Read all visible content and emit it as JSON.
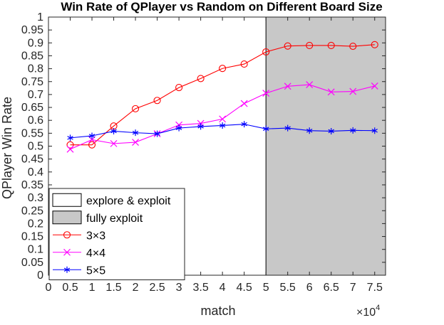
{
  "chart_data": {
    "type": "line",
    "title": "Win Rate of QPlayer vs Random on Different Board Size",
    "xlabel": "match",
    "ylabel": "QPlayer Win Rate",
    "x_multiplier_label": "×10",
    "x_multiplier_exponent": "4",
    "xlim": [
      0,
      7.75
    ],
    "ylim": [
      0,
      1
    ],
    "xticks": [
      0,
      0.5,
      1,
      1.5,
      2,
      2.5,
      3,
      3.5,
      4,
      4.5,
      5,
      5.5,
      6,
      6.5,
      7,
      7.5
    ],
    "xtick_labels": [
      "0",
      "0.5",
      "1",
      "1.5",
      "2",
      "2.5",
      "3",
      "3.5",
      "4",
      "4.5",
      "5",
      "5.5",
      "6",
      "6.5",
      "7",
      "7.5"
    ],
    "yticks": [
      0,
      0.05,
      0.1,
      0.15,
      0.2,
      0.25,
      0.3,
      0.35,
      0.4,
      0.45,
      0.5,
      0.55,
      0.6,
      0.65,
      0.7,
      0.75,
      0.8,
      0.85,
      0.9,
      0.95,
      1
    ],
    "ytick_labels": [
      "0",
      "0.05",
      "0.1",
      "0.15",
      "0.2",
      "0.25",
      "0.3",
      "0.35",
      "0.4",
      "0.45",
      "0.5",
      "0.55",
      "0.6",
      "0.65",
      "0.7",
      "0.75",
      "0.8",
      "0.85",
      "0.9",
      "0.95",
      "1"
    ],
    "grid": false,
    "legend_position": "bottom-left",
    "regions": [
      {
        "name": "explore & exploit",
        "x_range": [
          0,
          5
        ],
        "color": "#ffffff"
      },
      {
        "name": "fully exploit",
        "x_range": [
          5,
          7.75
        ],
        "color": "#c8c8c8"
      }
    ],
    "x": [
      0.5,
      1,
      1.5,
      2,
      2.5,
      3,
      3.5,
      4,
      4.5,
      5,
      5.5,
      6,
      6.5,
      7,
      7.5
    ],
    "series": [
      {
        "name": "3×3",
        "color": "#ff0000",
        "marker": "circle",
        "values": [
          0.505,
          0.505,
          0.578,
          0.645,
          0.677,
          0.727,
          0.762,
          0.801,
          0.818,
          0.865,
          0.888,
          0.89,
          0.89,
          0.887,
          0.893
        ]
      },
      {
        "name": "4×4",
        "color": "#ff00ff",
        "marker": "x",
        "values": [
          0.488,
          0.525,
          0.51,
          0.515,
          0.548,
          0.582,
          0.588,
          0.605,
          0.665,
          0.705,
          0.732,
          0.738,
          0.71,
          0.712,
          0.733
        ]
      },
      {
        "name": "5×5",
        "color": "#0000ff",
        "marker": "asterisk",
        "values": [
          0.532,
          0.54,
          0.558,
          0.552,
          0.548,
          0.57,
          0.576,
          0.58,
          0.585,
          0.567,
          0.57,
          0.56,
          0.558,
          0.561,
          0.56
        ]
      }
    ]
  }
}
